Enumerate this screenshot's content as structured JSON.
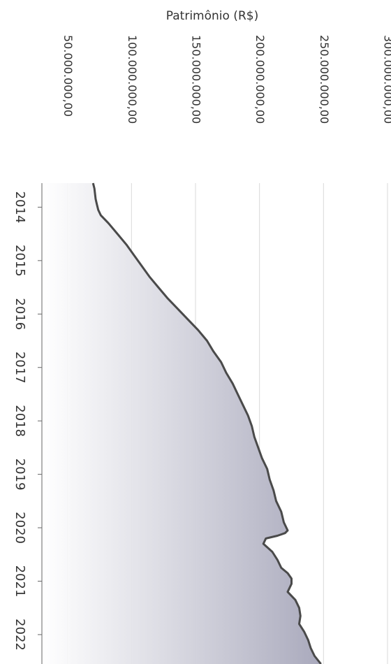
{
  "chart_data": {
    "type": "area",
    "orientation": "rotated-90",
    "title": "",
    "ylabel": "Patrimônio (R$)",
    "xlabel": "",
    "ylim": [
      30000000,
      300000000
    ],
    "yticks": [
      50000000,
      100000000,
      150000000,
      200000000,
      250000000,
      300000000
    ],
    "ytick_labels": [
      "50.000.000,00",
      "100.000.000,00",
      "150.000.000,00",
      "200.000.000,00",
      "250.000.000,00",
      "300.000.000,00"
    ],
    "xlim": [
      2013.55,
      2022.55
    ],
    "xticks": [
      2014,
      2015,
      2016,
      2017,
      2018,
      2019,
      2020,
      2021,
      2022
    ],
    "xtick_labels": [
      "2014",
      "2015",
      "2016",
      "2017",
      "2018",
      "2019",
      "2020",
      "2021",
      "2022"
    ],
    "grid": true,
    "line_color": "#4a4a4a",
    "fill_color": "#b7b7c6",
    "series": [
      {
        "x": [
          2013.55,
          2013.65,
          2013.75,
          2013.85,
          2013.95,
          2014.05,
          2014.15,
          2014.3,
          2014.5,
          2014.7,
          2014.9,
          2015.1,
          2015.3,
          2015.5,
          2015.7,
          2015.9,
          2016.1,
          2016.3,
          2016.5,
          2016.7,
          2016.9,
          2017.1,
          2017.3,
          2017.5,
          2017.7,
          2017.9,
          2018.1,
          2018.3,
          2018.5,
          2018.7,
          2018.9,
          2019.1,
          2019.3,
          2019.5,
          2019.7,
          2019.9,
          2020.05,
          2020.1,
          2020.15,
          2020.2,
          2020.3,
          2020.45,
          2020.6,
          2020.75,
          2020.85,
          2020.95,
          2021.05,
          2021.2,
          2021.35,
          2021.5,
          2021.65,
          2021.8,
          2021.95,
          2022.1,
          2022.25,
          2022.4,
          2022.55
        ],
        "values": [
          70000000,
          71000000,
          71500000,
          72000000,
          73000000,
          74000000,
          76000000,
          82000000,
          89000000,
          96000000,
          102000000,
          108000000,
          114000000,
          121000000,
          128000000,
          136000000,
          144000000,
          152000000,
          159000000,
          164000000,
          170000000,
          174000000,
          179000000,
          183000000,
          187000000,
          191000000,
          194000000,
          196000000,
          199000000,
          202000000,
          206000000,
          208000000,
          211000000,
          213000000,
          217000000,
          219000000,
          222000000,
          220000000,
          214000000,
          205000000,
          203000000,
          210000000,
          214000000,
          217000000,
          222000000,
          225000000,
          225000000,
          222000000,
          228000000,
          231000000,
          232000000,
          231000000,
          235000000,
          238000000,
          240000000,
          243000000,
          248000000
        ]
      }
    ]
  }
}
